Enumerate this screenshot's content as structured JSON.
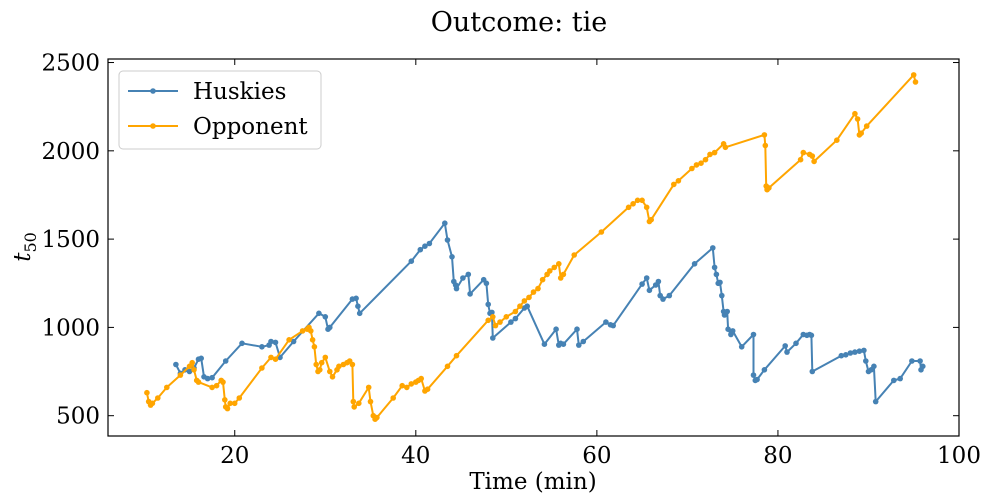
{
  "chart_data": {
    "type": "line",
    "title": "Outcome: tie",
    "xlabel": "Time (min)",
    "ylabel": "t",
    "ylabel_subscript": "50",
    "xlim": [
      6,
      100
    ],
    "ylim": [
      385,
      2520
    ],
    "xticks": [
      20,
      40,
      60,
      80,
      100
    ],
    "yticks": [
      500,
      1000,
      1500,
      2000,
      2500
    ],
    "grid": false,
    "legend_position": "top-left",
    "series": [
      {
        "name": "Huskies",
        "color": "#4682b4",
        "points": [
          [
            13.5,
            790
          ],
          [
            14.0,
            740
          ],
          [
            14.5,
            760
          ],
          [
            15.0,
            750
          ],
          [
            15.5,
            770
          ],
          [
            16.0,
            820
          ],
          [
            16.3,
            825
          ],
          [
            16.6,
            720
          ],
          [
            17.0,
            710
          ],
          [
            17.5,
            715
          ],
          [
            19.0,
            810
          ],
          [
            20.8,
            910
          ],
          [
            23.0,
            890
          ],
          [
            23.8,
            900
          ],
          [
            24.0,
            920
          ],
          [
            24.5,
            915
          ],
          [
            25.0,
            830
          ],
          [
            26.5,
            920
          ],
          [
            29.3,
            1080
          ],
          [
            30.0,
            1060
          ],
          [
            30.3,
            990
          ],
          [
            30.5,
            1000
          ],
          [
            33.0,
            1160
          ],
          [
            33.4,
            1165
          ],
          [
            33.6,
            1120
          ],
          [
            33.8,
            1080
          ],
          [
            39.5,
            1375
          ],
          [
            40.5,
            1440
          ],
          [
            41.0,
            1460
          ],
          [
            41.5,
            1475
          ],
          [
            43.2,
            1590
          ],
          [
            43.5,
            1495
          ],
          [
            44.0,
            1400
          ],
          [
            44.2,
            1260
          ],
          [
            44.4,
            1240
          ],
          [
            44.5,
            1220
          ],
          [
            45.2,
            1280
          ],
          [
            45.8,
            1300
          ],
          [
            46.0,
            1190
          ],
          [
            47.5,
            1270
          ],
          [
            47.8,
            1250
          ],
          [
            48.0,
            1130
          ],
          [
            48.2,
            1080
          ],
          [
            48.4,
            1085
          ],
          [
            48.5,
            940
          ],
          [
            50.5,
            1030
          ],
          [
            51.0,
            1050
          ],
          [
            52.0,
            1110
          ],
          [
            52.3,
            1120
          ],
          [
            54.2,
            905
          ],
          [
            55.5,
            990
          ],
          [
            55.8,
            900
          ],
          [
            56.0,
            910
          ],
          [
            56.3,
            905
          ],
          [
            57.8,
            990
          ],
          [
            58.0,
            900
          ],
          [
            58.5,
            920
          ],
          [
            61.0,
            1030
          ],
          [
            61.5,
            1015
          ],
          [
            61.8,
            1010
          ],
          [
            65.0,
            1245
          ],
          [
            65.5,
            1280
          ],
          [
            65.8,
            1210
          ],
          [
            66.5,
            1240
          ],
          [
            66.8,
            1260
          ],
          [
            67.0,
            1180
          ],
          [
            67.3,
            1160
          ],
          [
            68.0,
            1180
          ],
          [
            70.8,
            1360
          ],
          [
            72.8,
            1450
          ],
          [
            73.0,
            1340
          ],
          [
            73.2,
            1300
          ],
          [
            73.4,
            1250
          ],
          [
            73.6,
            1255
          ],
          [
            73.8,
            1180
          ],
          [
            74.0,
            1090
          ],
          [
            74.1,
            1070
          ],
          [
            74.2,
            1085
          ],
          [
            74.4,
            1090
          ],
          [
            74.5,
            990
          ],
          [
            74.8,
            960
          ],
          [
            75.0,
            980
          ],
          [
            76.0,
            890
          ],
          [
            77.3,
            960
          ],
          [
            77.3,
            730
          ],
          [
            77.5,
            700
          ],
          [
            77.7,
            705
          ],
          [
            78.5,
            760
          ],
          [
            80.8,
            895
          ],
          [
            81.0,
            860
          ],
          [
            82.0,
            910
          ],
          [
            82.8,
            960
          ],
          [
            83.2,
            955
          ],
          [
            83.5,
            960
          ],
          [
            83.7,
            955
          ],
          [
            83.8,
            750
          ],
          [
            87.0,
            840
          ],
          [
            87.5,
            845
          ],
          [
            88.0,
            855
          ],
          [
            88.5,
            860
          ],
          [
            89.0,
            865
          ],
          [
            89.5,
            870
          ],
          [
            89.7,
            810
          ],
          [
            90.0,
            750
          ],
          [
            90.3,
            760
          ],
          [
            90.6,
            780
          ],
          [
            90.8,
            580
          ],
          [
            92.8,
            700
          ],
          [
            93.5,
            710
          ],
          [
            94.8,
            810
          ],
          [
            95.7,
            810
          ],
          [
            95.8,
            760
          ],
          [
            96.0,
            780
          ]
        ]
      },
      {
        "name": "Opponent",
        "color": "#ffa500",
        "points": [
          [
            10.3,
            630
          ],
          [
            10.5,
            580
          ],
          [
            10.7,
            560
          ],
          [
            10.9,
            570
          ],
          [
            11.5,
            600
          ],
          [
            12.5,
            660
          ],
          [
            14.0,
            730
          ],
          [
            15.0,
            780
          ],
          [
            15.3,
            800
          ],
          [
            15.5,
            760
          ],
          [
            15.8,
            700
          ],
          [
            16.0,
            690
          ],
          [
            17.5,
            660
          ],
          [
            18.0,
            670
          ],
          [
            18.5,
            700
          ],
          [
            18.7,
            690
          ],
          [
            18.9,
            590
          ],
          [
            19.0,
            550
          ],
          [
            19.2,
            540
          ],
          [
            19.5,
            570
          ],
          [
            20.0,
            570
          ],
          [
            20.5,
            600
          ],
          [
            23.0,
            770
          ],
          [
            24.0,
            830
          ],
          [
            24.5,
            820
          ],
          [
            26.0,
            930
          ],
          [
            27.5,
            980
          ],
          [
            28.0,
            990
          ],
          [
            28.2,
            1000
          ],
          [
            28.4,
            980
          ],
          [
            28.6,
            930
          ],
          [
            28.8,
            890
          ],
          [
            29.0,
            790
          ],
          [
            29.2,
            750
          ],
          [
            29.4,
            760
          ],
          [
            29.6,
            800
          ],
          [
            30.0,
            830
          ],
          [
            30.5,
            750
          ],
          [
            30.8,
            720
          ],
          [
            31.3,
            760
          ],
          [
            31.5,
            780
          ],
          [
            32.0,
            790
          ],
          [
            32.4,
            800
          ],
          [
            32.7,
            810
          ],
          [
            33.0,
            790
          ],
          [
            33.1,
            580
          ],
          [
            33.2,
            550
          ],
          [
            33.7,
            570
          ],
          [
            34.8,
            660
          ],
          [
            35.0,
            580
          ],
          [
            35.3,
            500
          ],
          [
            35.5,
            480
          ],
          [
            35.7,
            490
          ],
          [
            37.5,
            600
          ],
          [
            38.5,
            670
          ],
          [
            39.0,
            660
          ],
          [
            39.5,
            680
          ],
          [
            40.0,
            690
          ],
          [
            40.3,
            700
          ],
          [
            40.6,
            710
          ],
          [
            41.0,
            640
          ],
          [
            41.3,
            650
          ],
          [
            43.5,
            780
          ],
          [
            44.5,
            840
          ],
          [
            48.0,
            1040
          ],
          [
            48.5,
            1060
          ],
          [
            48.8,
            1010
          ],
          [
            49.3,
            1030
          ],
          [
            50.0,
            1060
          ],
          [
            51.0,
            1090
          ],
          [
            51.5,
            1120
          ],
          [
            52.0,
            1150
          ],
          [
            52.5,
            1170
          ],
          [
            53.0,
            1200
          ],
          [
            53.5,
            1220
          ],
          [
            54.0,
            1270
          ],
          [
            54.5,
            1300
          ],
          [
            54.8,
            1320
          ],
          [
            55.3,
            1340
          ],
          [
            55.8,
            1360
          ],
          [
            56.0,
            1280
          ],
          [
            56.3,
            1300
          ],
          [
            57.5,
            1410
          ],
          [
            60.5,
            1540
          ],
          [
            63.5,
            1680
          ],
          [
            64.0,
            1700
          ],
          [
            64.5,
            1720
          ],
          [
            65.0,
            1720
          ],
          [
            65.5,
            1680
          ],
          [
            65.8,
            1600
          ],
          [
            66.0,
            1610
          ],
          [
            68.5,
            1810
          ],
          [
            69.0,
            1830
          ],
          [
            70.5,
            1900
          ],
          [
            71.0,
            1920
          ],
          [
            71.5,
            1930
          ],
          [
            72.0,
            1950
          ],
          [
            72.5,
            1980
          ],
          [
            73.0,
            1990
          ],
          [
            74.0,
            2040
          ],
          [
            74.2,
            2020
          ],
          [
            78.5,
            2090
          ],
          [
            78.6,
            2030
          ],
          [
            78.7,
            1800
          ],
          [
            78.8,
            1780
          ],
          [
            79.0,
            1790
          ],
          [
            82.5,
            1950
          ],
          [
            82.8,
            1990
          ],
          [
            83.5,
            1980
          ],
          [
            83.8,
            1970
          ],
          [
            84.0,
            1940
          ],
          [
            86.5,
            2060
          ],
          [
            88.5,
            2210
          ],
          [
            88.8,
            2180
          ],
          [
            89.0,
            2090
          ],
          [
            89.2,
            2100
          ],
          [
            89.8,
            2140
          ],
          [
            95.0,
            2430
          ],
          [
            95.2,
            2390
          ]
        ]
      }
    ]
  }
}
